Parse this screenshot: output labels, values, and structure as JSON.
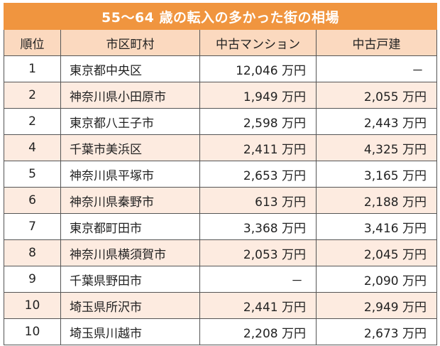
{
  "title": "55～64 歳の転入の多かった街の相場",
  "headers": {
    "rank": "順位",
    "city": "市区町村",
    "mansion": "中古マンション",
    "house": "中古戸建"
  },
  "rows": [
    {
      "rank": "1",
      "city": "東京都中央区",
      "mansion": "12,046 万円",
      "house": "－"
    },
    {
      "rank": "2",
      "city": "神奈川県小田原市",
      "mansion": "1,949 万円",
      "house": "2,055 万円"
    },
    {
      "rank": "2",
      "city": "東京都八王子市",
      "mansion": "2,598 万円",
      "house": "2,443 万円"
    },
    {
      "rank": "4",
      "city": "千葉市美浜区",
      "mansion": "2,411 万円",
      "house": "4,325 万円"
    },
    {
      "rank": "5",
      "city": "神奈川県平塚市",
      "mansion": "2,653 万円",
      "house": "3,165 万円"
    },
    {
      "rank": "6",
      "city": "神奈川県秦野市",
      "mansion": "613 万円",
      "house": "2,188 万円"
    },
    {
      "rank": "7",
      "city": "東京都町田市",
      "mansion": "3,368 万円",
      "house": "3,416 万円"
    },
    {
      "rank": "8",
      "city": "神奈川県横須賀市",
      "mansion": "2,053 万円",
      "house": "2,045 万円"
    },
    {
      "rank": "9",
      "city": "千葉県野田市",
      "mansion": "－",
      "house": "2,090 万円"
    },
    {
      "rank": "10",
      "city": "埼玉県所沢市",
      "mansion": "2,441 万円",
      "house": "2,949 万円"
    },
    {
      "rank": "10",
      "city": "埼玉県川越市",
      "mansion": "2,208 万円",
      "house": "2,673 万円"
    }
  ],
  "colors": {
    "title_bg": "#f0953f",
    "header_bg": "#fbd9bf",
    "stripe_bg": "#fdebe0",
    "border": "#555555"
  }
}
